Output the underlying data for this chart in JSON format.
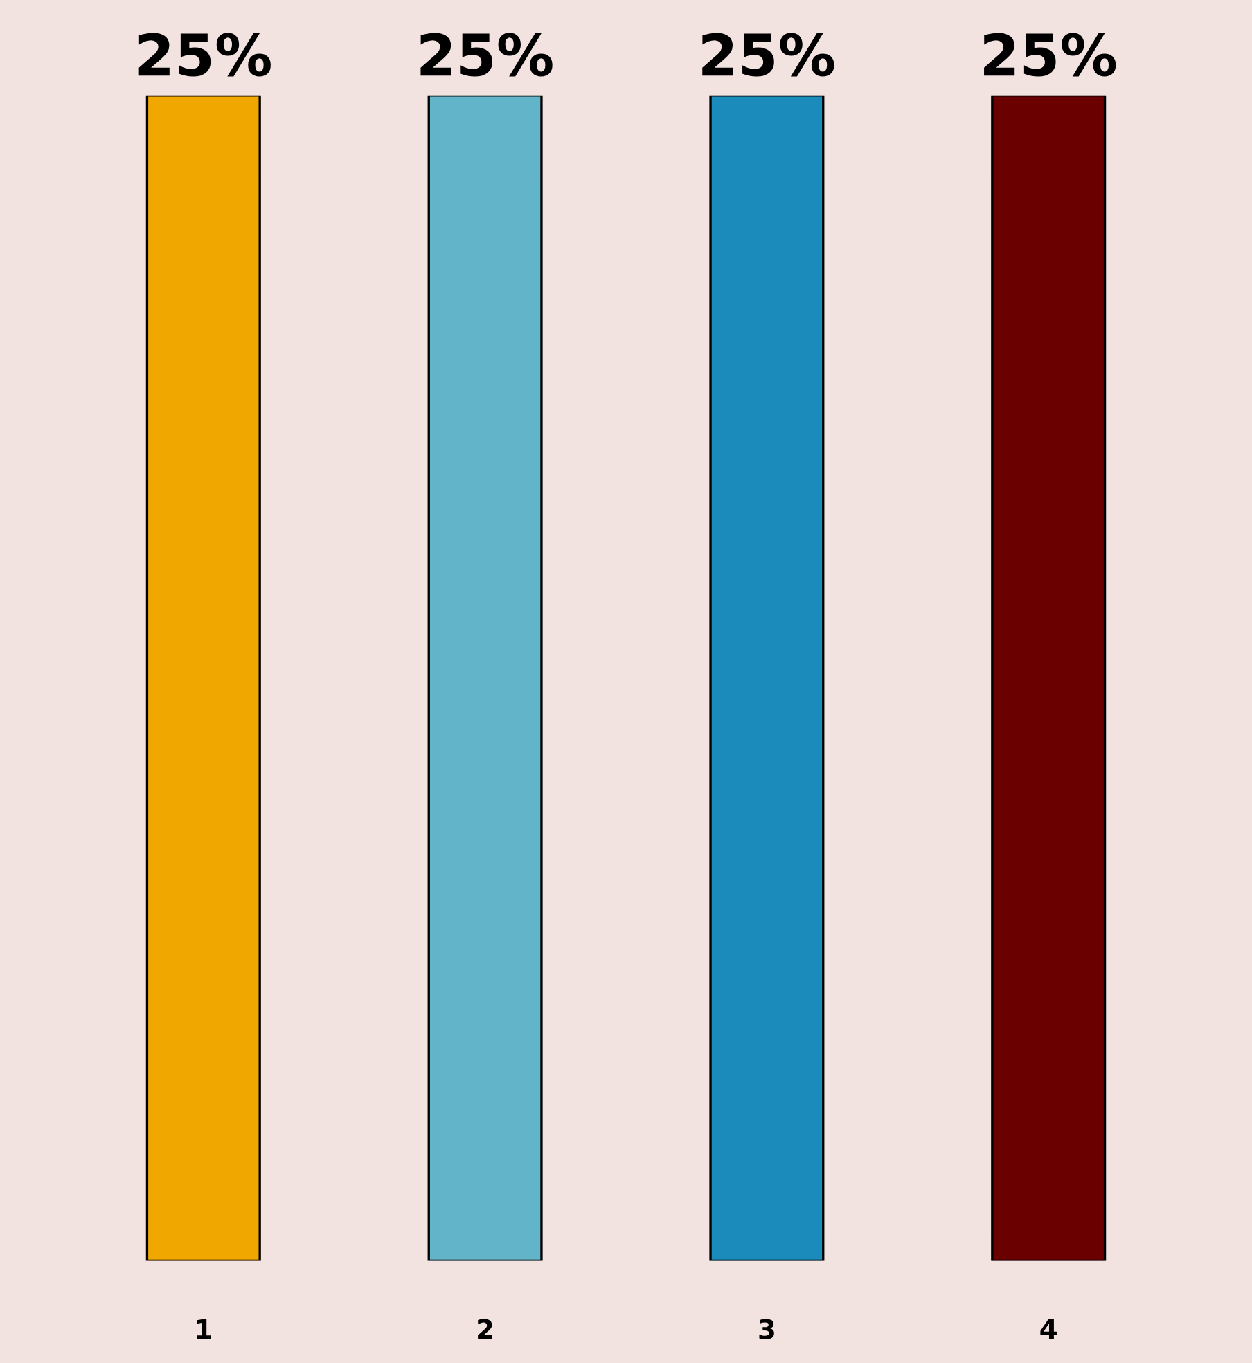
{
  "chart_data": {
    "type": "bar",
    "categories": [
      "1",
      "2",
      "3",
      "4"
    ],
    "values": [
      25,
      25,
      25,
      25
    ],
    "colors": [
      "#f0a800",
      "#62b5c8",
      "#1a8bbb",
      "#6b0000"
    ],
    "value_labels": [
      "25%",
      "25%",
      "25%",
      "25%"
    ],
    "grid": false,
    "legend": false
  }
}
